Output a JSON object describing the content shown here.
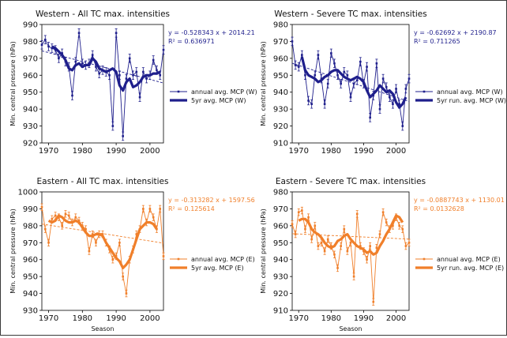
{
  "chart_data": [
    {
      "type": "line",
      "title": "Western - All TC max. intensities",
      "xlabel": "",
      "ylabel": "Min. central pressure (hPa)",
      "xlim": [
        1968,
        2004
      ],
      "ylim": [
        920,
        990
      ],
      "xticks": [
        1970,
        1980,
        1990,
        2000
      ],
      "yticks": [
        920,
        930,
        940,
        950,
        960,
        970,
        980,
        990
      ],
      "grid": false,
      "legend": "right",
      "colors": {
        "series": "#1f1f8c",
        "trend": "#1f1f8c"
      },
      "equation": "y = -0.528343 x + 2014.21",
      "r2": "R² = 0.636971",
      "trend": {
        "slope": -0.528343,
        "intercept": 2014.21
      },
      "series": [
        {
          "name": "annual avg. MCP (W)",
          "style": "annual",
          "x": [
            1968,
            1969,
            1970,
            1971,
            1972,
            1973,
            1974,
            1975,
            1976,
            1977,
            1978,
            1979,
            1980,
            1981,
            1982,
            1983,
            1984,
            1985,
            1986,
            1987,
            1988,
            1989,
            1990,
            1991,
            1992,
            1993,
            1994,
            1995,
            1996,
            1997,
            1998,
            1999,
            2000,
            2001,
            2002,
            2003,
            2004
          ],
          "values": [
            978,
            981,
            977,
            976,
            975,
            970,
            973,
            968,
            965,
            948,
            968,
            985,
            967,
            966,
            967,
            972,
            965,
            961,
            963,
            962,
            960,
            930,
            985,
            960,
            924,
            958,
            970,
            960,
            962,
            947,
            962,
            958,
            960,
            969,
            963,
            960,
            975
          ],
          "err": 2.5
        },
        {
          "name": "5yr avg. MCP (W)",
          "style": "smooth",
          "x": [
            1971,
            1972,
            1973,
            1974,
            1975,
            1976,
            1977,
            1978,
            1979,
            1980,
            1981,
            1982,
            1983,
            1984,
            1985,
            1986,
            1987,
            1988,
            1989,
            1990,
            1991,
            1992,
            1993,
            1994,
            1995,
            1996,
            1997,
            1998,
            1999,
            2000,
            2001,
            2002,
            2003
          ],
          "values": [
            977,
            976,
            974,
            972,
            969,
            964,
            963,
            966,
            967,
            965,
            966,
            966,
            970,
            968,
            964,
            963,
            962,
            963,
            964,
            962,
            954,
            951,
            956,
            958,
            953,
            954,
            956,
            959,
            960,
            960,
            961,
            961,
            962
          ]
        }
      ]
    },
    {
      "type": "line",
      "title": "Western - Severe TC max. intensities",
      "xlabel": "",
      "ylabel": "Min. central pressure (hPa)",
      "xlim": [
        1968,
        2004
      ],
      "ylim": [
        910,
        980
      ],
      "xticks": [
        1970,
        1980,
        1990,
        2000
      ],
      "yticks": [
        910,
        920,
        930,
        940,
        950,
        960,
        970,
        980
      ],
      "grid": false,
      "legend": "right",
      "colors": {
        "series": "#1f1f8c",
        "trend": "#1f1f8c"
      },
      "equation": "y = -0.62692 x + 2190.87",
      "r2": "R² = 0.711265",
      "trend": {
        "slope": -0.62692,
        "intercept": 2190.87
      },
      "series": [
        {
          "name": "annual avg. MCP (W)",
          "style": "annual",
          "x": [
            1968,
            1969,
            1970,
            1971,
            1972,
            1973,
            1974,
            1975,
            1976,
            1977,
            1978,
            1979,
            1980,
            1981,
            1982,
            1983,
            1984,
            1985,
            1986,
            1987,
            1988,
            1989,
            1990,
            1991,
            1992,
            1993,
            1994,
            1995,
            1996,
            1997,
            1998,
            1999,
            2000,
            2001,
            2002,
            2003,
            2004
          ],
          "values": [
            970,
            956,
            955,
            962,
            950,
            935,
            933,
            950,
            962,
            948,
            933,
            945,
            963,
            957,
            950,
            945,
            952,
            950,
            937,
            945,
            947,
            958,
            945,
            955,
            925,
            938,
            957,
            930,
            948,
            943,
            937,
            933,
            942,
            933,
            920,
            942,
            948
          ],
          "err": 2.5
        },
        {
          "name": "5yr run. avg. MCP (W)",
          "style": "smooth",
          "x": [
            1971,
            1972,
            1973,
            1974,
            1975,
            1976,
            1977,
            1978,
            1979,
            1980,
            1981,
            1982,
            1983,
            1984,
            1985,
            1986,
            1987,
            1988,
            1989,
            1990,
            1991,
            1992,
            1993,
            1994,
            1995,
            1996,
            1997,
            1998,
            1999,
            2000,
            2001,
            2002,
            2003
          ],
          "values": [
            961,
            953,
            950,
            949,
            948,
            946,
            947,
            949,
            950,
            952,
            953,
            953,
            951,
            949,
            948,
            947,
            948,
            949,
            948,
            946,
            941,
            937,
            939,
            941,
            944,
            942,
            940,
            941,
            939,
            934,
            931,
            933,
            937
          ]
        }
      ]
    },
    {
      "type": "line",
      "title": "Eastern - All TC max. intensities",
      "xlabel": "Season",
      "ylabel": "Min. central pressure (hPa)",
      "xlim": [
        1968,
        2004
      ],
      "ylim": [
        930,
        1000
      ],
      "xticks": [
        1970,
        1980,
        1990,
        2000
      ],
      "yticks": [
        930,
        940,
        950,
        960,
        970,
        980,
        990,
        1000
      ],
      "grid": false,
      "legend": "right",
      "colors": {
        "series": "#f07f2a",
        "trend": "#f07f2a"
      },
      "equation": "y = -0.313282 x + 1597.56",
      "r2": "R² = 0.125614",
      "trend": {
        "slope": -0.313282,
        "intercept": 1597.56
      },
      "series": [
        {
          "name": "annual avg. MCP (E)",
          "style": "annual",
          "x": [
            1968,
            1969,
            1970,
            1971,
            1972,
            1973,
            1974,
            1975,
            1976,
            1977,
            1978,
            1979,
            1980,
            1981,
            1982,
            1983,
            1984,
            1985,
            1986,
            1987,
            1988,
            1989,
            1990,
            1991,
            1992,
            1993,
            1994,
            1995,
            1996,
            1997,
            1998,
            1999,
            2000,
            2001,
            2002,
            2003,
            2004
          ],
          "values": [
            991,
            978,
            970,
            984,
            986,
            985,
            980,
            987,
            986,
            982,
            985,
            983,
            980,
            978,
            965,
            975,
            970,
            975,
            975,
            970,
            966,
            960,
            962,
            970,
            950,
            940,
            960,
            966,
            975,
            978,
            990,
            982,
            990,
            985,
            978,
            990,
            962
          ],
          "err": 2.0
        },
        {
          "name": "5yr avg. MCP (E)",
          "style": "smooth",
          "x": [
            1970,
            1971,
            1972,
            1973,
            1974,
            1975,
            1976,
            1977,
            1978,
            1979,
            1980,
            1981,
            1982,
            1983,
            1984,
            1985,
            1986,
            1987,
            1988,
            1989,
            1990,
            1991,
            1992,
            1993,
            1994,
            1995,
            1996,
            1997,
            1998,
            1999,
            2000,
            2001,
            2002
          ],
          "values": [
            983,
            982,
            983,
            986,
            985,
            983,
            982,
            982,
            983,
            982,
            979,
            976,
            974,
            974,
            975,
            975,
            974,
            970,
            967,
            964,
            961,
            959,
            955,
            957,
            960,
            966,
            972,
            978,
            980,
            982,
            982,
            981,
            978
          ]
        }
      ]
    },
    {
      "type": "line",
      "title": "Eastern - Severe TC max. intensities",
      "xlabel": "Season",
      "ylabel": "Min. central pressure (hPa)",
      "xlim": [
        1968,
        2004
      ],
      "ylim": [
        910,
        980
      ],
      "xticks": [
        1970,
        1980,
        1990,
        2000
      ],
      "yticks": [
        910,
        920,
        930,
        940,
        950,
        960,
        970,
        980
      ],
      "grid": false,
      "legend": "right",
      "colors": {
        "series": "#f07f2a",
        "trend": "#f07f2a"
      },
      "equation": "y = -0.0887743 x + 1130.01",
      "r2": "R² = 0.0132628",
      "trend": {
        "slope": -0.0887743,
        "intercept": 1130.01
      },
      "series": [
        {
          "name": "annual avg. MCP (E)",
          "style": "annual",
          "x": [
            1968,
            1969,
            1970,
            1971,
            1972,
            1973,
            1974,
            1975,
            1976,
            1977,
            1978,
            1979,
            1980,
            1981,
            1982,
            1983,
            1984,
            1985,
            1986,
            1987,
            1988,
            1989,
            1990,
            1991,
            1992,
            1993,
            1994,
            1995,
            1996,
            1997,
            1998,
            1999,
            2000,
            2001,
            2002,
            2003,
            2004
          ],
          "values": [
            961,
            955,
            968,
            969,
            958,
            965,
            952,
            960,
            948,
            950,
            945,
            952,
            948,
            943,
            935,
            948,
            958,
            945,
            950,
            930,
            967,
            948,
            945,
            940,
            948,
            915,
            947,
            955,
            968,
            962,
            958,
            960,
            965,
            960,
            958,
            948,
            950
          ],
          "err": 2.0
        },
        {
          "name": "5yr run. avg. MCP (E)",
          "style": "smooth",
          "x": [
            1970,
            1971,
            1972,
            1973,
            1974,
            1975,
            1976,
            1977,
            1978,
            1979,
            1980,
            1981,
            1982,
            1983,
            1984,
            1985,
            1986,
            1987,
            1988,
            1989,
            1990,
            1991,
            1992,
            1993,
            1994,
            1995,
            1996,
            1997,
            1998,
            1999,
            2000,
            2001,
            2002
          ],
          "values": [
            963,
            964,
            964,
            962,
            958,
            956,
            955,
            953,
            950,
            948,
            947,
            948,
            951,
            952,
            954,
            955,
            952,
            950,
            948,
            947,
            946,
            944,
            945,
            943,
            944,
            948,
            951,
            955,
            958,
            962,
            966,
            965,
            962
          ]
        }
      ]
    }
  ]
}
